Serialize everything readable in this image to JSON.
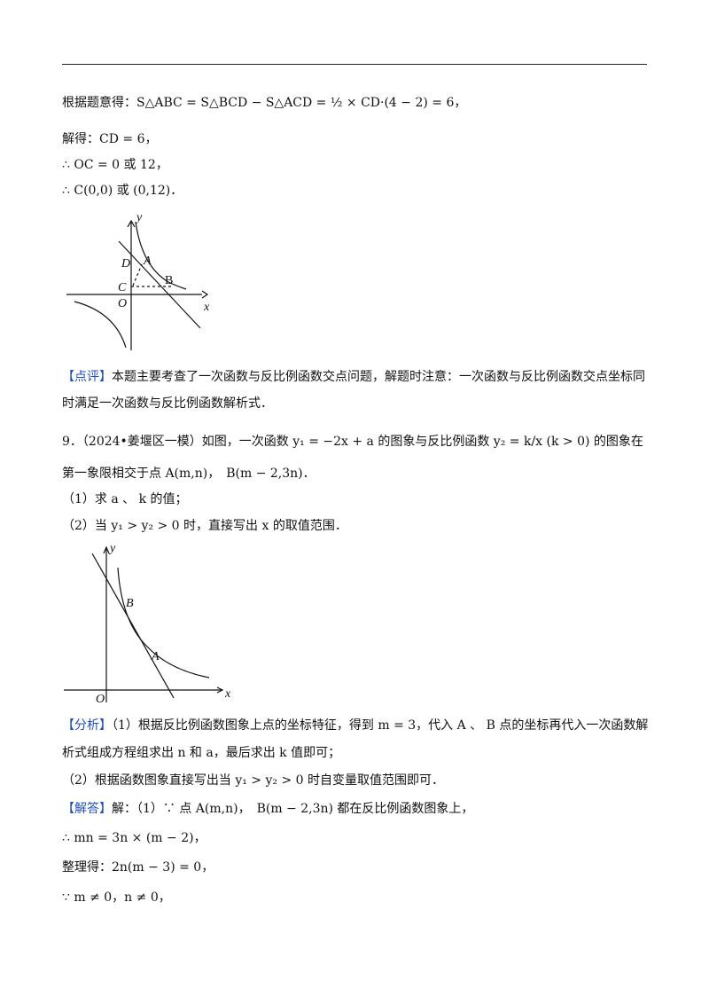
{
  "header_rule": true,
  "lines": [
    "根据题意得：S△ABC = S△BCD − S△ACD = ½ × CD·(4 − 2) = 6，",
    "解得：CD = 6，",
    "∴ OC = 0 或 12，",
    "∴ C(0,0) 或 (0,12)．"
  ],
  "figure1": {
    "labels": {
      "y": "y",
      "x": "x",
      "O": "O",
      "A": "A",
      "B": "B",
      "C": "C",
      "D": "D"
    }
  },
  "review": {
    "tag": "【点评】",
    "text": "本题主要考查了一次函数与反比例函数交点问题，解题时注意：一次函数与反比例函数交点坐标同时满足一次函数与反比例函数解析式．"
  },
  "question": {
    "stem": "9．（2024•姜堰区一模）如图，一次函数 y₁ = −2x + a 的图象与反比例函数 y₂ = k/x (k > 0) 的图象在第一象限相交于点 A(m,n)，　B(m − 2,3n)．",
    "parts": [
      "（1）求 a 、 k 的值；",
      "（2）当 y₁ > y₂ > 0 时，直接写出 x 的取值范围．"
    ]
  },
  "figure2": {
    "labels": {
      "y": "y",
      "x": "x",
      "O": "O",
      "A": "A",
      "B": "B"
    }
  },
  "analysis": {
    "tag": "【分析】",
    "lines": [
      "（1）根据反比例函数图象上点的坐标特征，得到 m = 3，代入 A 、 B 点的坐标再代入一次函数解析式组成方程组求出 n 和 a，最后求出 k 值即可；",
      "（2）根据函数图象直接写出当 y₁ > y₂ > 0 时自变量取值范围即可．"
    ]
  },
  "solution": {
    "tag": "【解答】",
    "lines": [
      "解：（1）∵ 点 A(m,n)，　B(m − 2,3n) 都在反比例函数图象上，",
      "∴ mn = 3n × (m − 2)，",
      "整理得：2n(m − 3) = 0，",
      "∵ m ≠ 0，n ≠ 0，"
    ]
  }
}
